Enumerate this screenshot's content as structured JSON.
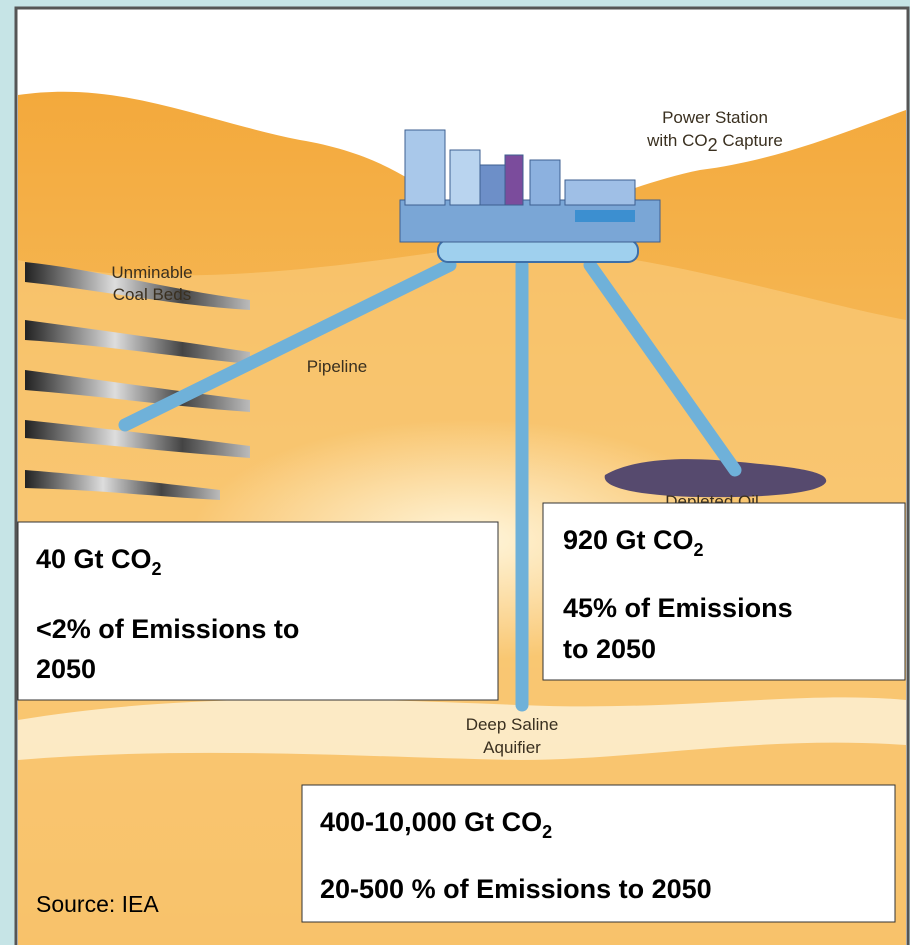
{
  "diagram": {
    "labels": {
      "power_station": {
        "line1": "Power Station",
        "line2": {
          "text": "with CO",
          "subscript": "2",
          "after": " Capture"
        }
      },
      "coal_beds": {
        "line1": "Unminable",
        "line2": "Coal Beds"
      },
      "pipeline": "Pipeline",
      "depleted_oil": "Depleted Oil",
      "aquifer": {
        "line1": "Deep Saline",
        "line2": "Aquifier"
      }
    },
    "boxes": [
      {
        "amount": {
          "text": "40 Gt CO",
          "subscript": "2"
        },
        "share_line1": "<2% of  Emissions to",
        "share_line2": "2050"
      },
      {
        "amount": {
          "text": "920 Gt CO",
          "subscript": "2"
        },
        "share_line1": "45% of  Emissions",
        "share_line2": "to 2050"
      },
      {
        "amount": {
          "text": "400-10,000 Gt CO",
          "subscript": "2"
        },
        "share_line1": "20-500 % of  Emissions to 2050"
      }
    ],
    "source": "Source: IEA"
  }
}
